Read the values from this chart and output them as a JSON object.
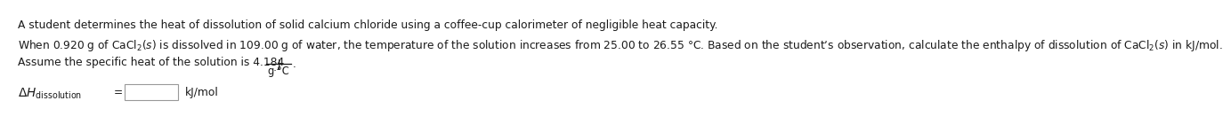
{
  "line1": "A student determines the heat of dissolution of solid calcium chloride using a coffee-cup calorimeter of negligible heat capacity.",
  "line2": "When 0.920 g of CaCl$_2$($s$) is dissolved in 109.00 g of water, the temperature of the solution increases from 25.00 to 26.55 °C. Based on the student’s observation, calculate the enthalpy of dissolution of CaCl$_2$($s$) in kJ/mol.",
  "line3_prefix": "Assume the specific heat of the solution is 4.184",
  "line3_frac_num": "J",
  "line3_frac_den": "g·°C",
  "line4_math": "$\\Delta H_{\\mathrm{dissolution}}$",
  "line4_eq": " =",
  "line4_suffix": "kJ/mol",
  "bg_color": "#ffffff",
  "text_color": "#1a1a1a",
  "font_size": 8.8,
  "box_color": "#ffffff",
  "box_edge_color": "#999999"
}
